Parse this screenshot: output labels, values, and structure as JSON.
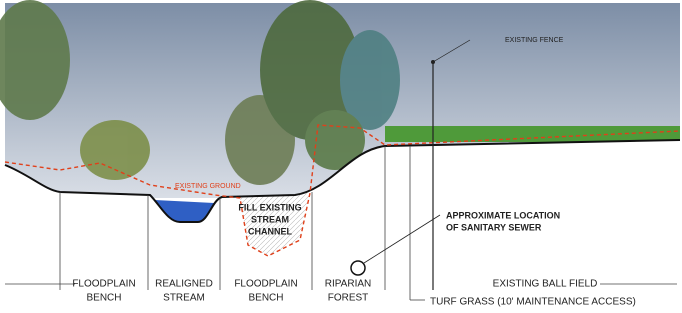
{
  "annotations": {
    "existing_fence": "EXISTING FENCE",
    "existing_ground": "EXISTING GROUND",
    "fill_channel": [
      "FILL EXISTING",
      "STREAM",
      "CHANNEL"
    ],
    "sewer": [
      "APPROXIMATE LOCATION",
      "OF SANITARY SEWER"
    ]
  },
  "zones": [
    {
      "lines": [
        "FLOODPLAIN",
        "BENCH"
      ]
    },
    {
      "lines": [
        "REALIGNED",
        "STREAM"
      ]
    },
    {
      "lines": [
        "FLOODPLAIN",
        "BENCH"
      ]
    },
    {
      "lines": [
        "RIPARIAN",
        "FOREST"
      ]
    },
    {
      "lines": [
        "EXISTING BALL FIELD"
      ]
    },
    {
      "lines": [
        "TURF GRASS (10' MAINTENANCE ACCESS)"
      ]
    }
  ]
}
